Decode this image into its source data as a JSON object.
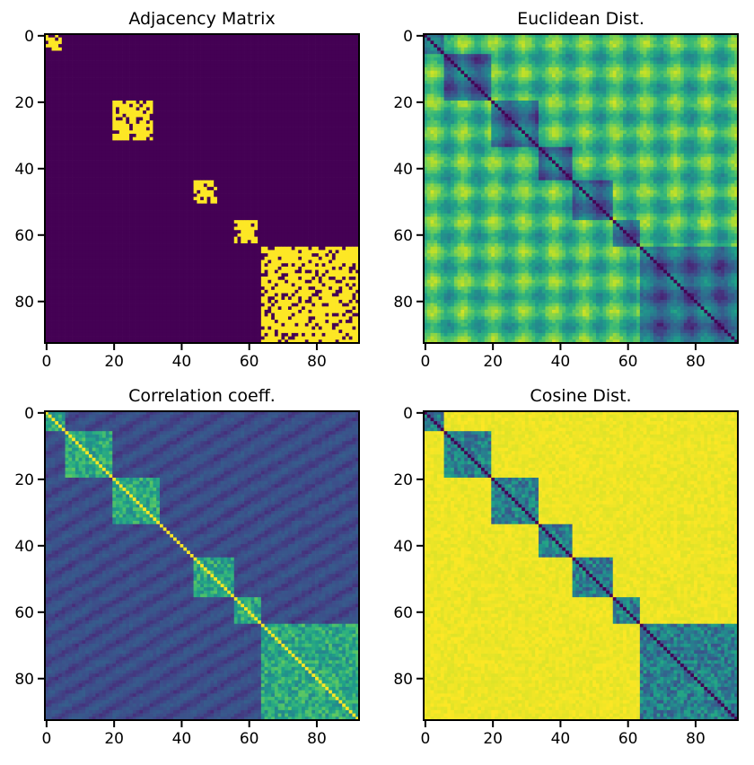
{
  "chart_data": [
    {
      "type": "heatmap",
      "title": "Adjacency Matrix",
      "size": 93,
      "colormap": "viridis",
      "binary": true,
      "xticks": [
        "0",
        "20",
        "40",
        "60",
        "80"
      ],
      "yticks": [
        "0",
        "20",
        "40",
        "60",
        "80"
      ],
      "xlim": [
        0,
        93
      ],
      "ylim": [
        93,
        0
      ],
      "blocks": [
        {
          "rows": [
            0,
            5
          ],
          "cols": [
            0,
            5
          ],
          "value": 1
        },
        {
          "rows": [
            20,
            32
          ],
          "cols": [
            20,
            32
          ],
          "value": 1
        },
        {
          "rows": [
            44,
            51
          ],
          "cols": [
            44,
            51
          ],
          "value": 1
        },
        {
          "rows": [
            56,
            63
          ],
          "cols": [
            56,
            63
          ],
          "value": 1
        },
        {
          "rows": [
            64,
            93
          ],
          "cols": [
            64,
            93
          ],
          "value": 1
        }
      ]
    },
    {
      "type": "heatmap",
      "title": "Euclidean Dist.",
      "size": 93,
      "colormap": "viridis",
      "xticks": [
        "0",
        "20",
        "40",
        "60",
        "80"
      ],
      "yticks": [
        "0",
        "20",
        "40",
        "60",
        "80"
      ],
      "xlim": [
        0,
        93
      ],
      "ylim": [
        93,
        0
      ],
      "diagonal_value": 0
    },
    {
      "type": "heatmap",
      "title": "Correlation coeff.",
      "size": 93,
      "colormap": "viridis",
      "xticks": [
        "0",
        "20",
        "40",
        "60",
        "80"
      ],
      "yticks": [
        "0",
        "20",
        "40",
        "60",
        "80"
      ],
      "xlim": [
        0,
        93
      ],
      "ylim": [
        93,
        0
      ],
      "diagonal_value": 1
    },
    {
      "type": "heatmap",
      "title": "Cosine Dist.",
      "size": 93,
      "colormap": "viridis",
      "xticks": [
        "0",
        "20",
        "40",
        "60",
        "80"
      ],
      "yticks": [
        "0",
        "20",
        "40",
        "60",
        "80"
      ],
      "xlim": [
        0,
        93
      ],
      "ylim": [
        93,
        0
      ],
      "diagonal_value": 0
    }
  ]
}
